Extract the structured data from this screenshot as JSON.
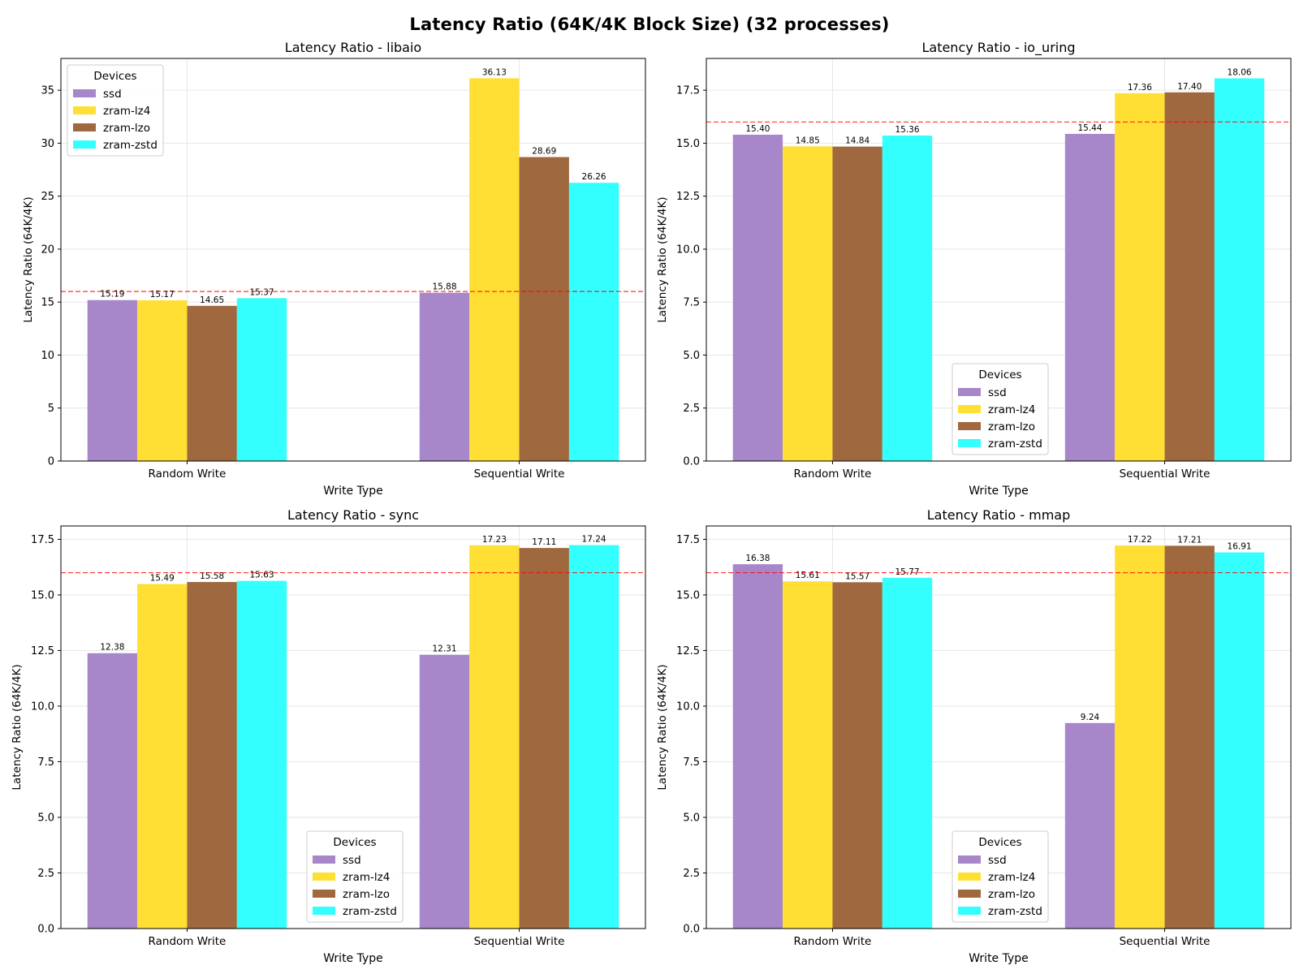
{
  "suptitle": "Latency Ratio (64K/4K Block Size) (32 processes)",
  "reference_line_color": "#ff0000",
  "series_colors": {
    "ssd": "#a786c9",
    "zram-lz4": "#ffdf33",
    "zram-lzo": "#a0683f",
    "zram-zstd": "#33ffff"
  },
  "chart_data": [
    {
      "type": "bar",
      "title": "Latency Ratio - libaio",
      "xlabel": "Write Type",
      "ylabel": "Latency Ratio (64K/4K)",
      "categories": [
        "Random Write",
        "Sequential Write"
      ],
      "ylim": [
        0,
        38
      ],
      "yticks": [
        0,
        5,
        10,
        15,
        20,
        25,
        30,
        35
      ],
      "ytick_labels": [
        "0",
        "5",
        "10",
        "15",
        "20",
        "25",
        "30",
        "35"
      ],
      "reference_line": 16,
      "grid": true,
      "legend_title": "Devices",
      "legend_position": "top-left",
      "series": [
        {
          "name": "ssd",
          "values": [
            15.19,
            15.88
          ],
          "labels": [
            "15.19",
            "15.88"
          ]
        },
        {
          "name": "zram-lz4",
          "values": [
            15.17,
            36.13
          ],
          "labels": [
            "15.17",
            "36.13"
          ]
        },
        {
          "name": "zram-lzo",
          "values": [
            14.65,
            28.69
          ],
          "labels": [
            "14.65",
            "28.69"
          ]
        },
        {
          "name": "zram-zstd",
          "values": [
            15.37,
            26.26
          ],
          "labels": [
            "15.37",
            "26.26"
          ]
        }
      ]
    },
    {
      "type": "bar",
      "title": "Latency Ratio - io_uring",
      "xlabel": "Write Type",
      "ylabel": "Latency Ratio (64K/4K)",
      "categories": [
        "Random Write",
        "Sequential Write"
      ],
      "ylim": [
        0,
        19
      ],
      "yticks": [
        0,
        2.5,
        5,
        7.5,
        10,
        12.5,
        15,
        17.5
      ],
      "ytick_labels": [
        "0.0",
        "2.5",
        "5.0",
        "7.5",
        "10.0",
        "12.5",
        "15.0",
        "17.5"
      ],
      "reference_line": 16,
      "grid": true,
      "legend_title": "Devices",
      "legend_position": "lower-center",
      "series": [
        {
          "name": "ssd",
          "values": [
            15.4,
            15.44
          ],
          "labels": [
            "15.40",
            "15.44"
          ]
        },
        {
          "name": "zram-lz4",
          "values": [
            14.85,
            17.36
          ],
          "labels": [
            "14.85",
            "17.36"
          ]
        },
        {
          "name": "zram-lzo",
          "values": [
            14.84,
            17.4
          ],
          "labels": [
            "14.84",
            "17.40"
          ]
        },
        {
          "name": "zram-zstd",
          "values": [
            15.36,
            18.06
          ],
          "labels": [
            "15.36",
            "18.06"
          ]
        }
      ]
    },
    {
      "type": "bar",
      "title": "Latency Ratio - sync",
      "xlabel": "Write Type",
      "ylabel": "Latency Ratio (64K/4K)",
      "categories": [
        "Random Write",
        "Sequential Write"
      ],
      "ylim": [
        0,
        18.1
      ],
      "yticks": [
        0,
        2.5,
        5,
        7.5,
        10,
        12.5,
        15,
        17.5
      ],
      "ytick_labels": [
        "0.0",
        "2.5",
        "5.0",
        "7.5",
        "10.0",
        "12.5",
        "15.0",
        "17.5"
      ],
      "reference_line": 16,
      "grid": true,
      "legend_title": "Devices",
      "legend_position": "lower-center",
      "series": [
        {
          "name": "ssd",
          "values": [
            12.38,
            12.31
          ],
          "labels": [
            "12.38",
            "12.31"
          ]
        },
        {
          "name": "zram-lz4",
          "values": [
            15.49,
            17.23
          ],
          "labels": [
            "15.49",
            "17.23"
          ]
        },
        {
          "name": "zram-lzo",
          "values": [
            15.58,
            17.11
          ],
          "labels": [
            "15.58",
            "17.11"
          ]
        },
        {
          "name": "zram-zstd",
          "values": [
            15.63,
            17.24
          ],
          "labels": [
            "15.63",
            "17.24"
          ]
        }
      ]
    },
    {
      "type": "bar",
      "title": "Latency Ratio - mmap",
      "xlabel": "Write Type",
      "ylabel": "Latency Ratio (64K/4K)",
      "categories": [
        "Random Write",
        "Sequential Write"
      ],
      "ylim": [
        0,
        18.1
      ],
      "yticks": [
        0,
        2.5,
        5,
        7.5,
        10,
        12.5,
        15,
        17.5
      ],
      "ytick_labels": [
        "0.0",
        "2.5",
        "5.0",
        "7.5",
        "10.0",
        "12.5",
        "15.0",
        "17.5"
      ],
      "reference_line": 16,
      "grid": true,
      "legend_title": "Devices",
      "legend_position": "lower-center",
      "series": [
        {
          "name": "ssd",
          "values": [
            16.38,
            9.24
          ],
          "labels": [
            "16.38",
            "9.24"
          ]
        },
        {
          "name": "zram-lz4",
          "values": [
            15.61,
            17.22
          ],
          "labels": [
            "15.61",
            "17.22"
          ]
        },
        {
          "name": "zram-lzo",
          "values": [
            15.57,
            17.21
          ],
          "labels": [
            "15.57",
            "17.21"
          ]
        },
        {
          "name": "zram-zstd",
          "values": [
            15.77,
            16.91
          ],
          "labels": [
            "15.77",
            "16.91"
          ]
        }
      ]
    }
  ]
}
